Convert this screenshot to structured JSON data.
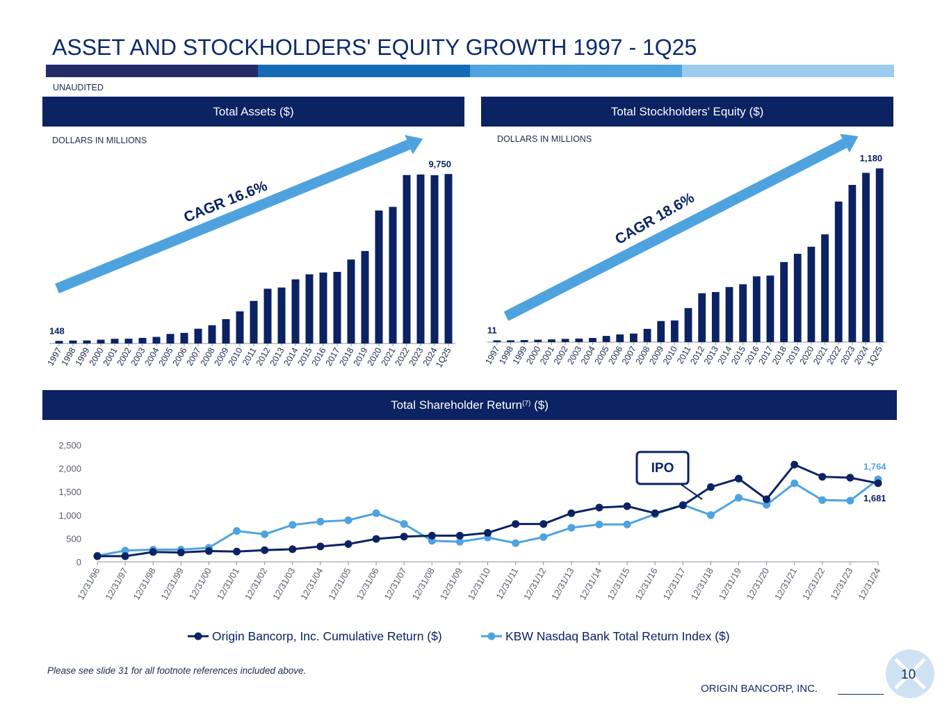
{
  "page": {
    "title": "ASSET AND STOCKHOLDERS' EQUITY GROWTH 1997 - 1Q25",
    "unaudited_label": "UNAUDITED",
    "footnote": "Please see slide 31 for all footnote references included above.",
    "company": "ORIGIN BANCORP, INC.",
    "page_number": "10",
    "colors": {
      "navy": "#0b2263",
      "mid_blue": "#136ab6",
      "light_blue": "#4ea3df",
      "pale_blue": "#9ccbee",
      "band_dark": "#222d68"
    }
  },
  "panels": {
    "assets_header": "Total Assets ($)",
    "equity_header": "Total Stockholders' Equity ($)",
    "tsr_header": "Total Shareholder Return",
    "tsr_header_sup": "(7)",
    "tsr_header_suffix": " ($)",
    "assets_units": "DOLLARS IN MILLIONS",
    "equity_units": "DOLLARS IN MILLIONS"
  },
  "chart_data": [
    {
      "type": "bar",
      "title": "Total Assets ($)",
      "units": "DOLLARS IN MILLIONS",
      "categories": [
        "1997",
        "1998",
        "1999",
        "2000",
        "2001",
        "2002",
        "2003",
        "2004",
        "2005",
        "2006",
        "2007",
        "2008",
        "2009",
        "2010",
        "2011",
        "2012",
        "2013",
        "2014",
        "2015",
        "2016",
        "2017",
        "2018",
        "2019",
        "2020",
        "2021",
        "2022",
        "2023",
        "2024",
        "1Q25"
      ],
      "values": [
        148,
        170,
        175,
        220,
        270,
        275,
        320,
        380,
        550,
        610,
        850,
        1050,
        1400,
        1850,
        2450,
        3150,
        3220,
        3690,
        3980,
        4080,
        4120,
        4830,
        5320,
        7650,
        7860,
        9690,
        9720,
        9680,
        9750
      ],
      "ylim": [
        0,
        10000
      ],
      "data_labels": {
        "first": "148",
        "last": "9,750"
      },
      "annotation": "CAGR 16.6%"
    },
    {
      "type": "bar",
      "title": "Total Stockholders' Equity ($)",
      "units": "DOLLARS IN MILLIONS",
      "categories": [
        "1997",
        "1998",
        "1999",
        "2000",
        "2001",
        "2002",
        "2003",
        "2004",
        "2005",
        "2006",
        "2007",
        "2008",
        "2009",
        "2010",
        "2011",
        "2012",
        "2013",
        "2014",
        "2015",
        "2016",
        "2017",
        "2018",
        "2019",
        "2020",
        "2021",
        "2022",
        "2023",
        "2024",
        "1Q25"
      ],
      "values": [
        11,
        12,
        14,
        16,
        18,
        22,
        24,
        28,
        42,
        52,
        58,
        90,
        143,
        147,
        231,
        332,
        340,
        374,
        393,
        447,
        452,
        544,
        600,
        648,
        732,
        955,
        1068,
        1150,
        1180
      ],
      "ylim": [
        0,
        1200
      ],
      "data_labels": {
        "first": "11",
        "last": "1,180"
      },
      "annotation": "CAGR 18.6%"
    },
    {
      "type": "line",
      "title": "Total Shareholder Return (7) ($)",
      "x": [
        "12/31/96",
        "12/31/97",
        "12/31/98",
        "12/31/99",
        "12/31/00",
        "12/31/01",
        "12/31/02",
        "12/31/03",
        "12/31/04",
        "12/31/05",
        "12/31/06",
        "12/31/07",
        "12/31/08",
        "12/31/09",
        "12/31/10",
        "12/31/11",
        "12/31/12",
        "12/31/13",
        "12/31/14",
        "12/31/15",
        "12/31/16",
        "12/31/17",
        "12/31/18",
        "12/31/19",
        "12/31/20",
        "12/31/21",
        "12/31/22",
        "12/31/23",
        "12/31/24"
      ],
      "series": [
        {
          "name": "Origin Bancorp, Inc. Cumulative Return ($)",
          "color": "#0b2263",
          "values": [
            120,
            120,
            210,
            200,
            230,
            220,
            250,
            270,
            330,
            380,
            490,
            540,
            560,
            560,
            620,
            810,
            810,
            1040,
            1160,
            1190,
            1040,
            1210,
            1600,
            1780,
            1340,
            2080,
            1820,
            1800,
            1681
          ]
        },
        {
          "name": "KBW Nasdaq Bank Total Return Index ($)",
          "color": "#4ea3df",
          "values": [
            130,
            240,
            260,
            260,
            300,
            660,
            590,
            790,
            860,
            890,
            1040,
            810,
            450,
            430,
            520,
            400,
            530,
            730,
            800,
            800,
            1020,
            1220,
            1000,
            1370,
            1220,
            1680,
            1320,
            1310,
            1764
          ]
        }
      ],
      "ylim": [
        0,
        2500
      ],
      "yticks": [
        "0",
        "500",
        "1,000",
        "1,500",
        "2,000",
        "2,500"
      ],
      "ytick_values": [
        0,
        500,
        1000,
        1500,
        2000,
        2500
      ],
      "annotation": "IPO",
      "end_labels": {
        "origin": "1,681",
        "kbw": "1,764"
      }
    }
  ]
}
